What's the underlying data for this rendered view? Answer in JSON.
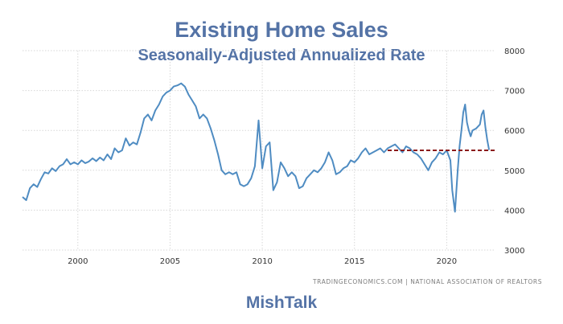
{
  "header": {
    "title": "Existing Home Sales",
    "subtitle": "Seasonally-Adjusted Annualized Rate"
  },
  "source": "TRADINGECONOMICS.COM | NATIONAL ASSOCIATION OF REALTORS",
  "brand": "MishTalk",
  "colors": {
    "title": "#5473a6",
    "line": "#4f8cc2",
    "reference": "#8b1a1a",
    "grid": "#d7d7d7"
  },
  "chart_data": {
    "type": "line",
    "title": "Existing Home Sales",
    "subtitle": "Seasonally-Adjusted Annualized Rate",
    "xlabel": "",
    "ylabel": "",
    "xlim": [
      1997.0,
      2022.6
    ],
    "ylim": [
      3000,
      8000
    ],
    "x_ticks": [
      2000,
      2005,
      2010,
      2015,
      2020
    ],
    "y_ticks": [
      3000,
      4000,
      5000,
      6000,
      7000,
      8000
    ],
    "y_axis_side": "right",
    "grid": "dotted",
    "series": [
      {
        "points": [
          [
            1997.0,
            4330
          ],
          [
            1997.2,
            4250
          ],
          [
            1997.4,
            4550
          ],
          [
            1997.6,
            4650
          ],
          [
            1997.8,
            4580
          ],
          [
            1998.0,
            4780
          ],
          [
            1998.2,
            4950
          ],
          [
            1998.4,
            4920
          ],
          [
            1998.6,
            5050
          ],
          [
            1998.8,
            4980
          ],
          [
            1999.0,
            5100
          ],
          [
            1999.2,
            5150
          ],
          [
            1999.4,
            5280
          ],
          [
            1999.6,
            5150
          ],
          [
            1999.8,
            5200
          ],
          [
            2000.0,
            5150
          ],
          [
            2000.2,
            5250
          ],
          [
            2000.4,
            5180
          ],
          [
            2000.6,
            5220
          ],
          [
            2000.8,
            5300
          ],
          [
            2001.0,
            5230
          ],
          [
            2001.2,
            5320
          ],
          [
            2001.4,
            5250
          ],
          [
            2001.6,
            5400
          ],
          [
            2001.8,
            5280
          ],
          [
            2002.0,
            5550
          ],
          [
            2002.2,
            5450
          ],
          [
            2002.4,
            5500
          ],
          [
            2002.6,
            5800
          ],
          [
            2002.8,
            5620
          ],
          [
            2003.0,
            5700
          ],
          [
            2003.2,
            5650
          ],
          [
            2003.4,
            5950
          ],
          [
            2003.6,
            6300
          ],
          [
            2003.8,
            6400
          ],
          [
            2004.0,
            6250
          ],
          [
            2004.2,
            6500
          ],
          [
            2004.4,
            6650
          ],
          [
            2004.6,
            6850
          ],
          [
            2004.8,
            6950
          ],
          [
            2005.0,
            7000
          ],
          [
            2005.2,
            7100
          ],
          [
            2005.4,
            7130
          ],
          [
            2005.6,
            7180
          ],
          [
            2005.8,
            7100
          ],
          [
            2006.0,
            6900
          ],
          [
            2006.2,
            6750
          ],
          [
            2006.4,
            6600
          ],
          [
            2006.6,
            6300
          ],
          [
            2006.8,
            6400
          ],
          [
            2007.0,
            6300
          ],
          [
            2007.2,
            6050
          ],
          [
            2007.4,
            5750
          ],
          [
            2007.6,
            5400
          ],
          [
            2007.8,
            5000
          ],
          [
            2008.0,
            4900
          ],
          [
            2008.2,
            4950
          ],
          [
            2008.4,
            4900
          ],
          [
            2008.6,
            4950
          ],
          [
            2008.8,
            4650
          ],
          [
            2009.0,
            4600
          ],
          [
            2009.2,
            4650
          ],
          [
            2009.4,
            4800
          ],
          [
            2009.6,
            5100
          ],
          [
            2009.8,
            6250
          ],
          [
            2010.0,
            5050
          ],
          [
            2010.2,
            5600
          ],
          [
            2010.4,
            5700
          ],
          [
            2010.6,
            4500
          ],
          [
            2010.8,
            4700
          ],
          [
            2011.0,
            5200
          ],
          [
            2011.2,
            5050
          ],
          [
            2011.4,
            4850
          ],
          [
            2011.6,
            4950
          ],
          [
            2011.8,
            4850
          ],
          [
            2012.0,
            4550
          ],
          [
            2012.2,
            4600
          ],
          [
            2012.4,
            4800
          ],
          [
            2012.6,
            4900
          ],
          [
            2012.8,
            5000
          ],
          [
            2013.0,
            4950
          ],
          [
            2013.2,
            5050
          ],
          [
            2013.4,
            5200
          ],
          [
            2013.6,
            5450
          ],
          [
            2013.8,
            5250
          ],
          [
            2014.0,
            4900
          ],
          [
            2014.2,
            4950
          ],
          [
            2014.4,
            5050
          ],
          [
            2014.6,
            5100
          ],
          [
            2014.8,
            5250
          ],
          [
            2015.0,
            5200
          ],
          [
            2015.2,
            5300
          ],
          [
            2015.4,
            5450
          ],
          [
            2015.6,
            5550
          ],
          [
            2015.8,
            5400
          ],
          [
            2016.0,
            5450
          ],
          [
            2016.2,
            5500
          ],
          [
            2016.4,
            5550
          ],
          [
            2016.6,
            5450
          ],
          [
            2016.8,
            5550
          ],
          [
            2017.0,
            5600
          ],
          [
            2017.2,
            5650
          ],
          [
            2017.4,
            5550
          ],
          [
            2017.6,
            5450
          ],
          [
            2017.8,
            5600
          ],
          [
            2018.0,
            5550
          ],
          [
            2018.2,
            5450
          ],
          [
            2018.4,
            5400
          ],
          [
            2018.6,
            5300
          ],
          [
            2018.8,
            5150
          ],
          [
            2019.0,
            5000
          ],
          [
            2019.2,
            5200
          ],
          [
            2019.4,
            5300
          ],
          [
            2019.6,
            5450
          ],
          [
            2019.8,
            5400
          ],
          [
            2020.0,
            5500
          ],
          [
            2020.2,
            5250
          ],
          [
            2020.3,
            4500
          ],
          [
            2020.45,
            3960
          ],
          [
            2020.6,
            5000
          ],
          [
            2020.7,
            5600
          ],
          [
            2020.8,
            6000
          ],
          [
            2020.9,
            6450
          ],
          [
            2021.0,
            6650
          ],
          [
            2021.1,
            6200
          ],
          [
            2021.2,
            6000
          ],
          [
            2021.3,
            5850
          ],
          [
            2021.4,
            6000
          ],
          [
            2021.6,
            6050
          ],
          [
            2021.8,
            6150
          ],
          [
            2021.9,
            6400
          ],
          [
            2022.0,
            6500
          ],
          [
            2022.1,
            6080
          ],
          [
            2022.2,
            5760
          ],
          [
            2022.3,
            5510
          ]
        ]
      }
    ],
    "reference_line": {
      "y": 5500,
      "x_start": 2016.8,
      "x_end": 2022.6,
      "style": "dashed"
    }
  }
}
